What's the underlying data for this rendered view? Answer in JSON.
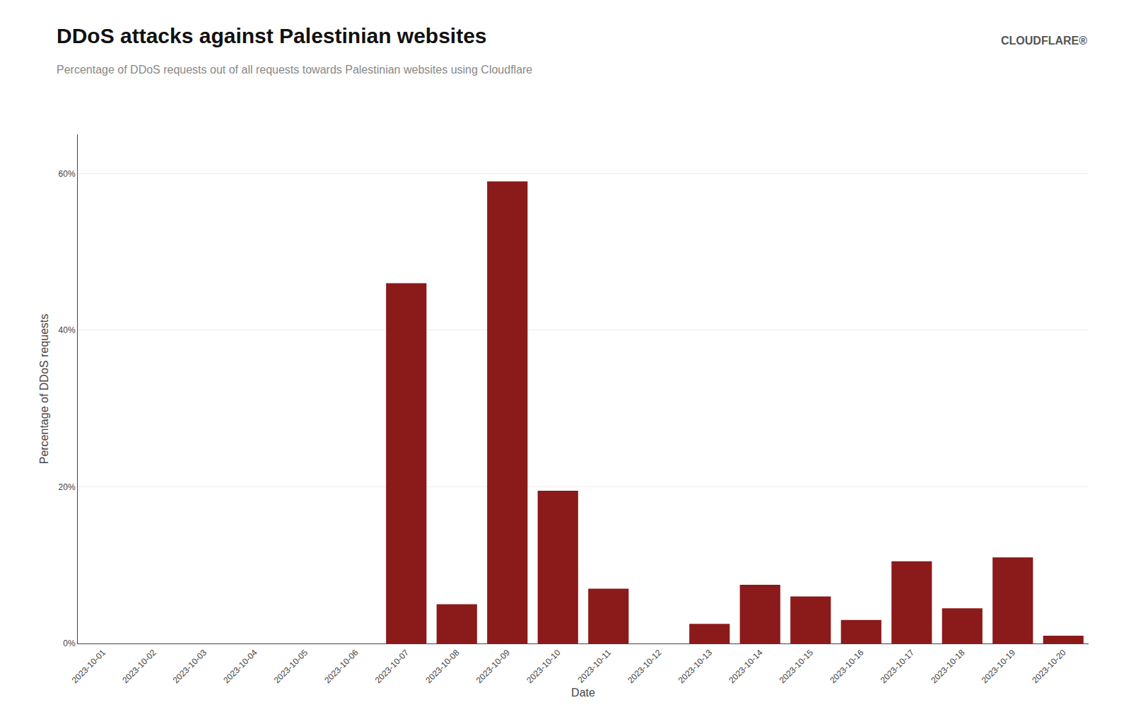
{
  "chart_data": {
    "type": "bar",
    "title": "DDoS attacks against Palestinian websites",
    "subtitle": "Percentage of DDoS requests out of all requests towards Palestinian websites using Cloudflare",
    "xlabel": "Date",
    "ylabel": "Percentage of DDoS requests",
    "categories": [
      "2023-10-01",
      "2023-10-02",
      "2023-10-03",
      "2023-10-04",
      "2023-10-05",
      "2023-10-06",
      "2023-10-07",
      "2023-10-08",
      "2023-10-09",
      "2023-10-10",
      "2023-10-11",
      "2023-10-12",
      "2023-10-13",
      "2023-10-14",
      "2023-10-15",
      "2023-10-16",
      "2023-10-17",
      "2023-10-18",
      "2023-10-19",
      "2023-10-20"
    ],
    "values": [
      0,
      0,
      0,
      0,
      0,
      0,
      46,
      5,
      59,
      19.5,
      7,
      0,
      2.5,
      7.5,
      6,
      3,
      10.5,
      4.5,
      11,
      1
    ],
    "color": "#8B1A1A",
    "ylim": [
      0,
      65
    ],
    "yticks": [
      {
        "value": 0,
        "label": "0%"
      },
      {
        "value": 20,
        "label": "20%"
      },
      {
        "value": 40,
        "label": "40%"
      },
      {
        "value": 60,
        "label": "60%"
      }
    ],
    "grid": true,
    "annotations": [
      {
        "text": "CLOUDFLARE®"
      }
    ]
  }
}
